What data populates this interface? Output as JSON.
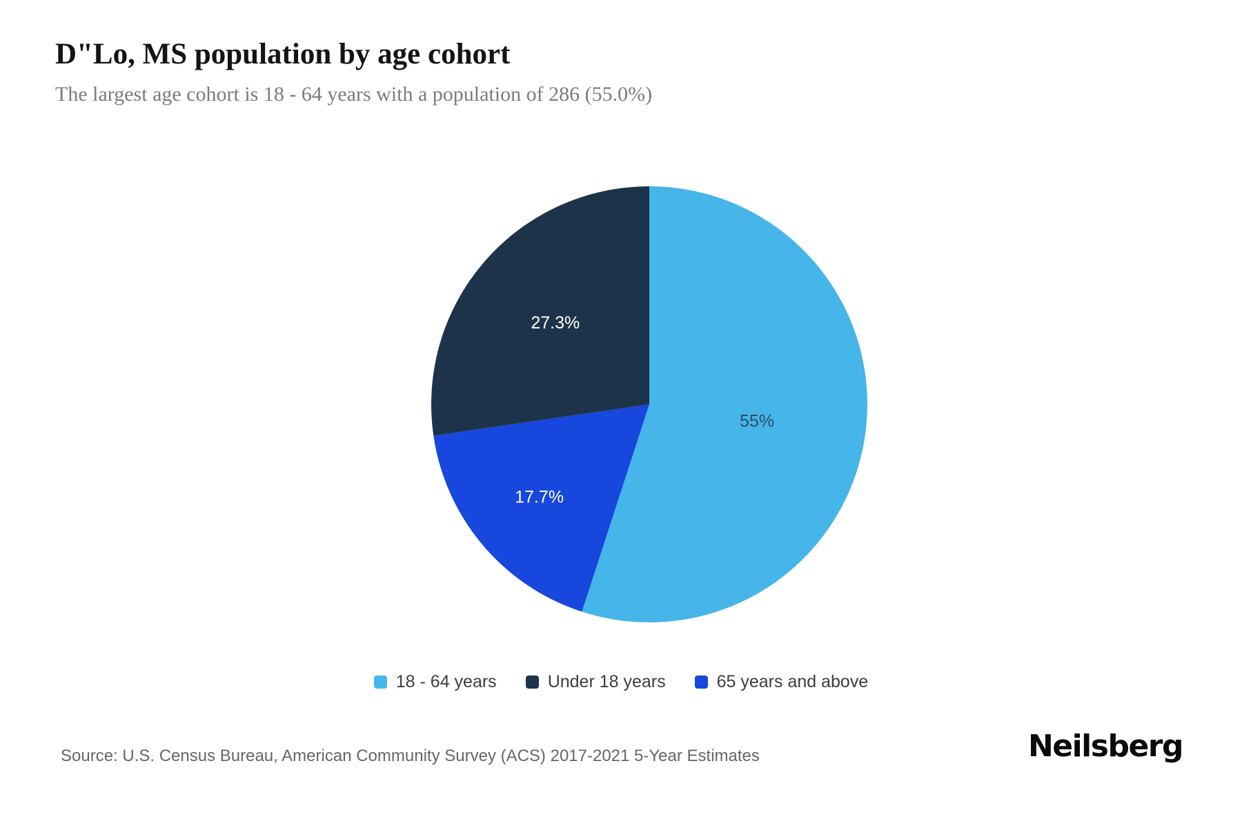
{
  "header": {
    "title": "D\"Lo, MS population by age cohort",
    "subtitle": "The largest age cohort is 18 - 64 years with a population of 286 (55.0%)"
  },
  "footer": {
    "source": "Source: U.S. Census Bureau, American Community Survey (ACS) 2017-2021 5-Year Estimates",
    "brand": "Neilsberg"
  },
  "chart_data": {
    "type": "pie",
    "title": "D\"Lo, MS population by age cohort",
    "start_angle_deg": 0,
    "direction": "clockwise",
    "legend_position": "bottom",
    "slices": [
      {
        "label": "18 - 64 years",
        "value": 55.0,
        "display": "55%",
        "color": "#45b5ea",
        "label_color": "#2d4b66"
      },
      {
        "label": "65 years and above",
        "value": 17.7,
        "display": "17.7%",
        "color": "#1747dd",
        "label_color": "#ffffff"
      },
      {
        "label": "Under 18 years",
        "value": 27.3,
        "display": "27.3%",
        "color": "#1d3349",
        "label_color": "#ffffff"
      }
    ],
    "label_radius_frac": [
      0.5,
      0.66,
      0.57
    ],
    "legend": [
      {
        "label": "18 - 64 years",
        "color": "#45b5ea"
      },
      {
        "label": "Under 18 years",
        "color": "#1d3349"
      },
      {
        "label": "65 years and above",
        "color": "#1747dd"
      }
    ]
  }
}
